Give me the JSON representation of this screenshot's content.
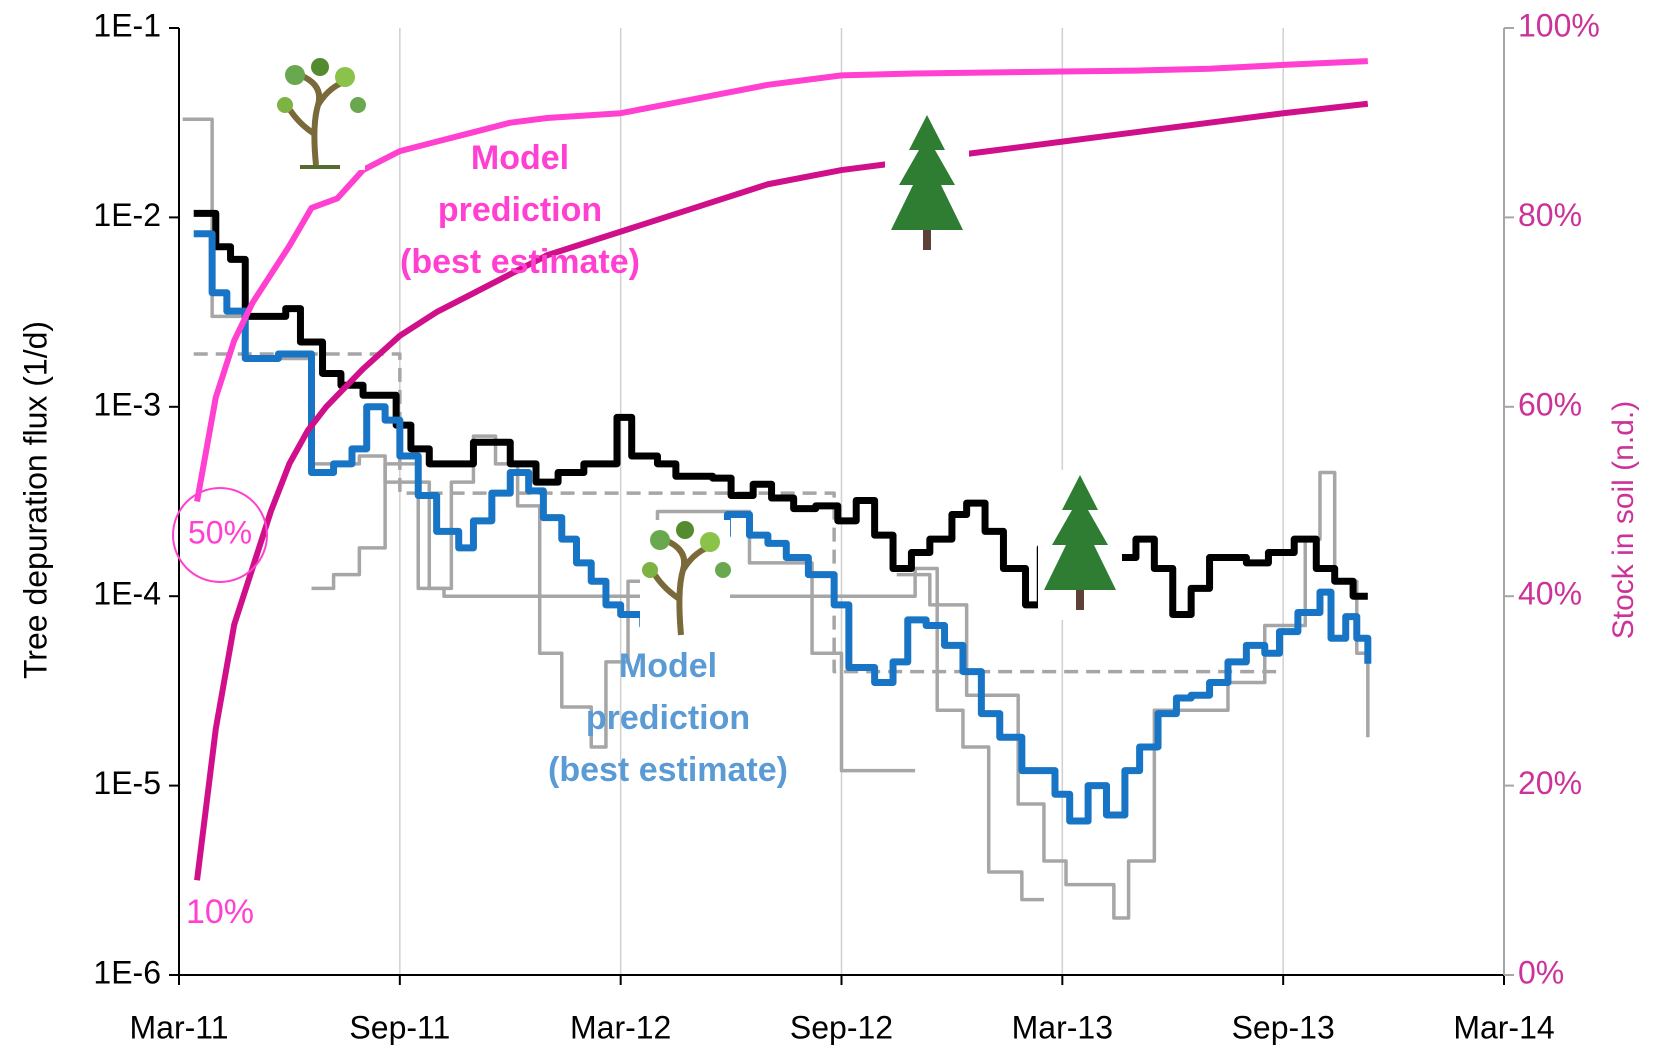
{
  "chart_data": {
    "type": "line",
    "ylabel": "Tree depuration  flux (1/d)",
    "y2label": "Stock in soil (n.d.)",
    "xlim": [
      0,
      36
    ],
    "xticks": [
      {
        "value": 0,
        "label": "Mar-11"
      },
      {
        "value": 6,
        "label": "Sep-11"
      },
      {
        "value": 12,
        "label": "Mar-12"
      },
      {
        "value": 18,
        "label": "Sep-12"
      },
      {
        "value": 24,
        "label": "Mar-13"
      },
      {
        "value": 30,
        "label": "Sep-13"
      },
      {
        "value": 36,
        "label": "Mar-14"
      }
    ],
    "ylim": [
      1e-06,
      0.1
    ],
    "yscale": "log",
    "yticks": [
      {
        "value": 0.1,
        "label": "1E-1"
      },
      {
        "value": 0.01,
        "label": "1E-2"
      },
      {
        "value": 0.001,
        "label": "1E-3"
      },
      {
        "value": 0.0001,
        "label": "1E-4"
      },
      {
        "value": 1e-05,
        "label": "1E-5"
      },
      {
        "value": 1e-06,
        "label": "1E-6"
      }
    ],
    "y2lim": [
      0,
      100
    ],
    "y2ticks": [
      {
        "value": 0,
        "label": "0%"
      },
      {
        "value": 20,
        "label": "20%"
      },
      {
        "value": 40,
        "label": "40%"
      },
      {
        "value": 60,
        "label": "60%"
      },
      {
        "value": 80,
        "label": "80%"
      },
      {
        "value": 100,
        "label": "100%"
      }
    ],
    "grid": "x",
    "series": [
      {
        "color": "#a6a6a6",
        "step": true,
        "dash": true,
        "x": [
          0.4,
          6.0,
          17.8,
          30.0
        ],
        "values": [
          0.0019,
          0.00035,
          4e-05,
          4e-05
        ]
      },
      {
        "color": "#a6a6a6",
        "step": true,
        "x": [
          0.1,
          0.9,
          1.8,
          3.6,
          4.9,
          5.6,
          6.8,
          7.4,
          8.0,
          8.6,
          9.2,
          9.8,
          10.4,
          11.2,
          11.6,
          12.2,
          13.0,
          15.5,
          17.2,
          18.0,
          20.0
        ],
        "values": [
          0.033,
          0.003,
          0.0018,
          0.0005,
          0.00055,
          0.0004,
          0.00011,
          0.0004,
          0.0007,
          0.0005,
          0.0003,
          5e-05,
          2.6e-05,
          1.6e-05,
          4.5e-05,
          0.00012,
          0.00028,
          0.00015,
          5e-05,
          1.2e-05,
          1.2e-05
        ]
      },
      {
        "color": "#a6a6a6",
        "step": true,
        "x": [
          3.6,
          4.2,
          4.9,
          5.6,
          6.5,
          7.2,
          20.0,
          20.6,
          21.3,
          22.0,
          22.9,
          23.5
        ],
        "values": [
          0.00011,
          0.00013,
          0.00018,
          0.0005,
          0.00011,
          0.0001,
          0.00014,
          2.5e-05,
          1.6e-05,
          3.5e-06,
          2.5e-06,
          2.5e-06
        ]
      },
      {
        "color": "#a6a6a6",
        "step": true,
        "x": [
          19.5,
          20.4,
          21.4,
          22.8,
          23.5,
          24.1,
          25.4,
          25.8,
          26.5,
          28.5,
          29.5,
          30.6,
          31.0,
          31.4,
          32.0,
          32.3
        ],
        "values": [
          0.00013,
          9e-05,
          3e-05,
          8e-06,
          4e-06,
          3e-06,
          2e-06,
          4e-06,
          2.5e-05,
          3.5e-05,
          7e-05,
          0.0002,
          0.00045,
          0.00012,
          5e-05,
          1.8e-05
        ]
      },
      {
        "color": "#000000",
        "step": true,
        "x": [
          0.4,
          1.0,
          1.4,
          1.8,
          2.6,
          2.9,
          3.3,
          3.9,
          4.4,
          5.0,
          5.9,
          6.3,
          6.8,
          8.0,
          9.0,
          9.7,
          10.3,
          11.0,
          11.9,
          12.3,
          13.0,
          13.5,
          14.5,
          15.0,
          15.6,
          16.1,
          16.7,
          17.3,
          17.9,
          18.4,
          18.9,
          19.4,
          19.9,
          20.4,
          21.0,
          21.4,
          21.9,
          22.4,
          23.0,
          23.4,
          23.9,
          25.5,
          26.0,
          26.5,
          27.0,
          27.5,
          28.0,
          29.0,
          29.6,
          30.3,
          30.9,
          31.4,
          31.9,
          32.3
        ],
        "values": [
          0.0105,
          0.007,
          0.006,
          0.003,
          0.003,
          0.0033,
          0.0022,
          0.0015,
          0.0013,
          0.00115,
          0.0008,
          0.0006,
          0.0005,
          0.00065,
          0.0005,
          0.0004,
          0.00045,
          0.0005,
          0.00088,
          0.00055,
          0.0005,
          0.00043,
          0.00042,
          0.00034,
          0.00039,
          0.00033,
          0.00029,
          0.0003,
          0.00025,
          0.00032,
          0.00021,
          0.00014,
          0.00017,
          0.0002,
          0.00027,
          0.00031,
          0.00022,
          0.00014,
          9e-05,
          0.00018,
          0.00011,
          0.00016,
          0.0002,
          0.00014,
          8e-05,
          0.00011,
          0.00016,
          0.00015,
          0.00017,
          0.0002,
          0.00014,
          0.00012,
          0.0001,
          0.0001
        ]
      },
      {
        "color": "#1874c4",
        "step": true,
        "x": [
          0.4,
          0.9,
          1.3,
          1.8,
          2.7,
          3.6,
          4.2,
          4.7,
          5.1,
          5.6,
          6.0,
          6.5,
          7.0,
          7.6,
          8.0,
          8.5,
          9.0,
          9.5,
          9.9,
          10.4,
          10.8,
          11.2,
          11.6,
          12.0,
          12.6,
          13.0,
          13.5,
          14.0,
          14.9,
          15.5,
          16.0,
          16.5,
          17.1,
          17.8,
          18.2,
          18.9,
          19.4,
          19.8,
          20.3,
          20.8,
          21.3,
          21.8,
          22.3,
          22.9,
          23.8,
          24.2,
          24.7,
          25.2,
          25.7,
          26.1,
          26.6,
          27.1,
          27.5,
          28.0,
          28.5,
          29.0,
          29.5,
          29.9,
          30.4,
          31.0,
          31.3,
          31.7,
          32.0,
          32.3
        ],
        "values": [
          0.0082,
          0.004,
          0.0032,
          0.0018,
          0.0019,
          0.00045,
          0.0005,
          0.0006,
          0.001,
          0.00085,
          0.00055,
          0.00034,
          0.00022,
          0.00018,
          0.00025,
          0.00035,
          0.00045,
          0.00036,
          0.00026,
          0.0002,
          0.00015,
          0.00012,
          9e-05,
          8e-05,
          7e-05,
          8e-05,
          0.00018,
          0.00021,
          0.00027,
          0.00021,
          0.00019,
          0.00016,
          0.00013,
          9e-05,
          4.2e-05,
          3.5e-05,
          4.5e-05,
          7.5e-05,
          7e-05,
          5.5e-05,
          4e-05,
          2.4e-05,
          1.8e-05,
          1.2e-05,
          9e-06,
          6.5e-06,
          1e-05,
          7e-06,
          1.2e-05,
          1.6e-05,
          2.4e-05,
          2.9e-05,
          3e-05,
          3.5e-05,
          4.5e-05,
          5.5e-05,
          5e-05,
          6.5e-05,
          8.2e-05,
          0.000105,
          6e-05,
          7.8e-05,
          6e-05,
          4.4e-05
        ]
      },
      {
        "color": "#ff40d0",
        "axis": "y2",
        "x": [
          0.49,
          1.0,
          1.5,
          2.0,
          3.0,
          3.6,
          4.3,
          5.0,
          6.0,
          7.0,
          8.0,
          9.0,
          10.0,
          12.0,
          14.0,
          16.0,
          18.0,
          20.0,
          22.0,
          24.0,
          26.0,
          28.0,
          30.0,
          32.3
        ],
        "values": [
          50,
          61,
          67,
          71,
          77,
          81,
          82,
          85,
          87,
          88,
          89,
          90,
          90.5,
          91,
          92.5,
          94,
          95,
          95.2,
          95.3,
          95.4,
          95.5,
          95.7,
          96.1,
          96.5
        ]
      },
      {
        "color": "#d0108a",
        "axis": "y2",
        "x": [
          0.49,
          1.0,
          1.5,
          2.0,
          2.5,
          3.0,
          3.5,
          4.0,
          5.0,
          6.0,
          7.0,
          8.0,
          9.0,
          10.0,
          12.0,
          14.0,
          16.0,
          18.0,
          20.0,
          22.0,
          24.0,
          26.0,
          28.0,
          30.0,
          32.3
        ],
        "values": [
          10,
          26,
          37,
          43,
          49,
          54,
          57.5,
          60,
          64,
          67.5,
          70,
          72,
          74,
          76,
          78.5,
          81,
          83.5,
          85,
          86,
          87,
          88,
          89,
          90,
          91,
          92
        ]
      }
    ],
    "annotations": [
      {
        "text": [
          "Model",
          "prediction",
          "(best estimate)"
        ],
        "color": "#ff40d0"
      },
      {
        "text": [
          "Model",
          "prediction",
          "(best estimate)"
        ],
        "color": "#5b9bd5"
      },
      {
        "text": [
          "50%"
        ],
        "color": "#ff40d0"
      },
      {
        "text": [
          "10%"
        ],
        "color": "#ff40d0"
      }
    ]
  }
}
